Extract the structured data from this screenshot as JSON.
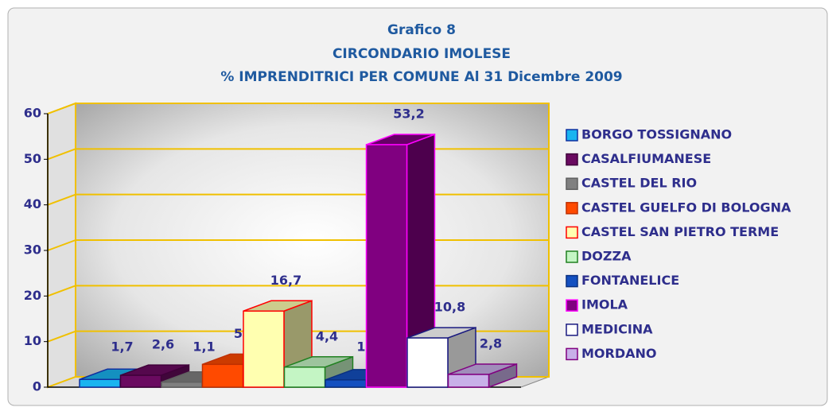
{
  "chart_data": {
    "type": "bar3d",
    "title": [
      "Grafico 8",
      "CIRCONDARIO IMOLESE",
      "% IMPRENDITRICI PER COMUNE Al 31 Dicembre 2009"
    ],
    "categories": [
      "BORGO TOSSIGNANO",
      "CASALFIUMANESE",
      "CASTEL DEL RIO",
      "CASTEL GUELFO DI BOLOGNA",
      "CASTEL SAN PIETRO TERME",
      "DOZZA",
      "FONTANELICE",
      "IMOLA",
      "MEDICINA",
      "MORDANO"
    ],
    "values": [
      1.7,
      2.6,
      1.1,
      5.0,
      16.7,
      4.4,
      1.6,
      53.2,
      10.8,
      2.8
    ],
    "value_labels": [
      "1,7",
      "2,6",
      "1,1",
      "5,0",
      "16,7",
      "4,4",
      "1,6",
      "53,2",
      "10,8",
      "2,8"
    ],
    "colors": [
      "#19b4f0",
      "#6a0a60",
      "#808080",
      "#ff4a00",
      "#ffffb0",
      "#c4f5c4",
      "#1450c0",
      "#800080",
      "#ffffff",
      "#c8b0e8"
    ],
    "edge_colors": [
      "#1030a0",
      "#40003a",
      "#606060",
      "#c03000",
      "#ff0000",
      "#208020",
      "#0a3080",
      "#ff00ff",
      "#1a1a80",
      "#800080"
    ],
    "ylim": [
      0,
      60
    ],
    "yticks": [
      0,
      10,
      20,
      30,
      40,
      50,
      60
    ],
    "grid": true,
    "legend": "right"
  }
}
